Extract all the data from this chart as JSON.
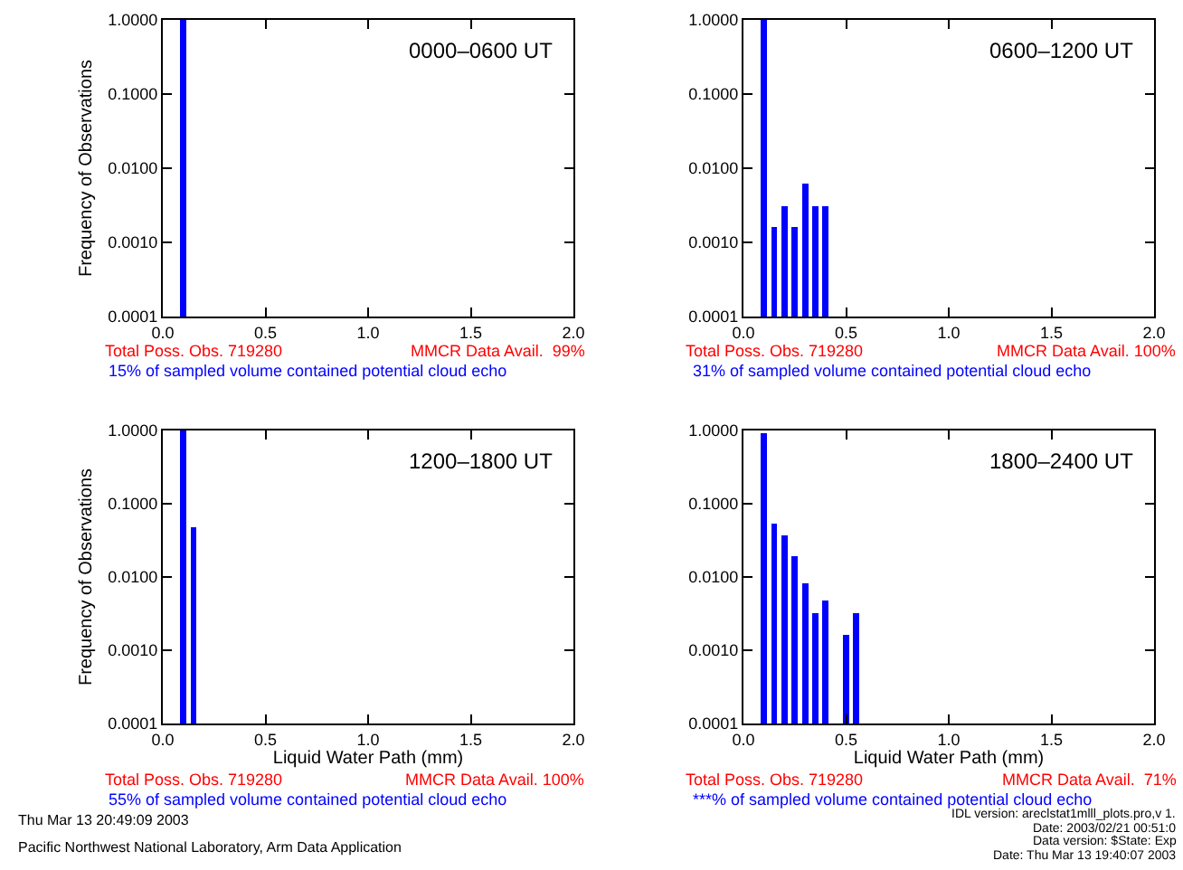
{
  "chart_data": [
    {
      "type": "bar",
      "ylabel": "Frequency of Observations",
      "x": [
        0.1
      ],
      "values": [
        1.0
      ],
      "color": "#0000ff",
      "log": true,
      "xlim": [
        0,
        2
      ],
      "ylim": [
        0.0001,
        1
      ],
      "xticks": [
        {
          "value": 0,
          "label": "0.0"
        },
        {
          "value": 0.5,
          "label": "0.5"
        },
        {
          "value": 1,
          "label": "1.0"
        },
        {
          "value": 1.5,
          "label": "1.5"
        },
        {
          "value": 2,
          "label": "2.0"
        }
      ],
      "yticks": [
        {
          "value": 0.0001,
          "label": "0.0001"
        },
        {
          "value": 0.001,
          "label": "0.0010"
        },
        {
          "value": 0.01,
          "label": "0.0100"
        },
        {
          "value": 0.1,
          "label": "0.1000"
        },
        {
          "value": 1,
          "label": "1.0000"
        }
      ],
      "annotations": [
        "0000–0600 UT",
        "Total Poss. Obs. 719280",
        "MMCR Data Avail.  99%",
        "15% of sampled volume contained potential cloud echo"
      ]
    },
    {
      "type": "bar",
      "x": [
        0.1,
        0.15,
        0.2,
        0.25,
        0.3,
        0.35,
        0.4
      ],
      "values": [
        1.0,
        0.0016,
        0.0031,
        0.0016,
        0.0062,
        0.0031,
        0.0031
      ],
      "color": "#0000ff",
      "log": true,
      "xlim": [
        0,
        2
      ],
      "ylim": [
        0.0001,
        1
      ],
      "xticks": [
        {
          "value": 0,
          "label": "0.0"
        },
        {
          "value": 0.5,
          "label": "0.5"
        },
        {
          "value": 1,
          "label": "1.0"
        },
        {
          "value": 1.5,
          "label": "1.5"
        },
        {
          "value": 2,
          "label": "2.0"
        }
      ],
      "yticks": [
        {
          "value": 0.0001,
          "label": "0.0001"
        },
        {
          "value": 0.001,
          "label": "0.0010"
        },
        {
          "value": 0.01,
          "label": "0.0100"
        },
        {
          "value": 0.1,
          "label": "0.1000"
        },
        {
          "value": 1,
          "label": "1.0000"
        }
      ],
      "annotations": [
        "0600–1200 UT",
        "Total Poss. Obs. 719280",
        "MMCR Data Avail. 100%",
        "31% of sampled volume contained potential cloud echo"
      ]
    },
    {
      "type": "bar",
      "xlabel": "Liquid Water Path (mm)",
      "ylabel": "Frequency of Observations",
      "x": [
        0.1,
        0.15
      ],
      "values": [
        1.0,
        0.048
      ],
      "color": "#0000ff",
      "log": true,
      "xlim": [
        0,
        2
      ],
      "ylim": [
        0.0001,
        1
      ],
      "xticks": [
        {
          "value": 0,
          "label": "0.0"
        },
        {
          "value": 0.5,
          "label": "0.5"
        },
        {
          "value": 1,
          "label": "1.0"
        },
        {
          "value": 1.5,
          "label": "1.5"
        },
        {
          "value": 2,
          "label": "2.0"
        }
      ],
      "yticks": [
        {
          "value": 0.0001,
          "label": "0.0001"
        },
        {
          "value": 0.001,
          "label": "0.0010"
        },
        {
          "value": 0.01,
          "label": "0.0100"
        },
        {
          "value": 0.1,
          "label": "0.1000"
        },
        {
          "value": 1,
          "label": "1.0000"
        }
      ],
      "annotations": [
        "1200–1800 UT",
        "Total Poss. Obs. 719280",
        "MMCR Data Avail. 100%",
        "55% of sampled volume contained potential cloud echo",
        "Thu Mar 13 20:49:09 2003",
        "Pacific Northwest National Laboratory, Arm Data Application"
      ]
    },
    {
      "type": "bar",
      "xlabel": "Liquid Water Path (mm)",
      "x": [
        0.1,
        0.15,
        0.2,
        0.25,
        0.3,
        0.35,
        0.4,
        0.5,
        0.55
      ],
      "values": [
        0.93,
        0.053,
        0.037,
        0.019,
        0.0082,
        0.0032,
        0.0048,
        0.0016,
        0.0032
      ],
      "color": "#0000ff",
      "log": true,
      "xlim": [
        0,
        2
      ],
      "ylim": [
        0.0001,
        1
      ],
      "xticks": [
        {
          "value": 0,
          "label": "0.0"
        },
        {
          "value": 0.5,
          "label": "0.5"
        },
        {
          "value": 1,
          "label": "1.0"
        },
        {
          "value": 1.5,
          "label": "1.5"
        },
        {
          "value": 2,
          "label": "2.0"
        }
      ],
      "yticks": [
        {
          "value": 0.0001,
          "label": "0.0001"
        },
        {
          "value": 0.001,
          "label": "0.0010"
        },
        {
          "value": 0.01,
          "label": "0.0100"
        },
        {
          "value": 0.1,
          "label": "0.1000"
        },
        {
          "value": 1,
          "label": "1.0000"
        }
      ],
      "annotations": [
        "1800–2400 UT",
        "Total Poss. Obs. 719280",
        "MMCR Data Avail.  71%",
        "***% of sampled volume contained potential cloud echo",
        "IDL version: areclstat1mlll_plots.pro,v 1.",
        "Date: 2003/02/21 00:51:0",
        "Data version: $State: Exp",
        "Date: Thu Mar 13 19:40:07 2003"
      ]
    }
  ]
}
